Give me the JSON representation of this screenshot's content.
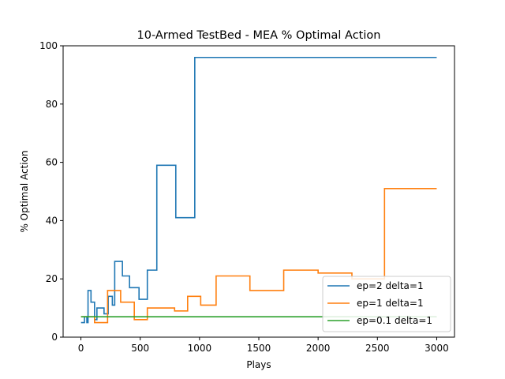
{
  "chart_data": {
    "type": "line",
    "title": "10-Armed TestBed - MEA % Optimal Action",
    "xlabel": "Plays",
    "ylabel": "% Optimal Action",
    "xlim": [
      -150,
      3150
    ],
    "ylim": [
      0,
      100
    ],
    "x_ticks": [
      0,
      500,
      1000,
      1500,
      2000,
      2500,
      3000
    ],
    "y_ticks": [
      0,
      20,
      40,
      60,
      80,
      100
    ],
    "grid": false,
    "legend_position": "lower-right",
    "line_shape": "step",
    "series": [
      {
        "name": "ep=2 delta=1",
        "color": "#1f77b4",
        "points": [
          [
            1,
            5
          ],
          [
            30,
            5
          ],
          [
            30,
            7
          ],
          [
            50,
            7
          ],
          [
            50,
            5
          ],
          [
            60,
            5
          ],
          [
            60,
            16
          ],
          [
            85,
            16
          ],
          [
            85,
            12
          ],
          [
            115,
            12
          ],
          [
            115,
            6
          ],
          [
            135,
            6
          ],
          [
            135,
            10
          ],
          [
            195,
            10
          ],
          [
            195,
            8
          ],
          [
            230,
            8
          ],
          [
            230,
            14
          ],
          [
            265,
            14
          ],
          [
            265,
            11
          ],
          [
            285,
            11
          ],
          [
            285,
            26
          ],
          [
            350,
            26
          ],
          [
            350,
            21
          ],
          [
            410,
            21
          ],
          [
            410,
            17
          ],
          [
            490,
            17
          ],
          [
            490,
            13
          ],
          [
            560,
            13
          ],
          [
            560,
            23
          ],
          [
            640,
            23
          ],
          [
            640,
            59
          ],
          [
            800,
            59
          ],
          [
            800,
            41
          ],
          [
            960,
            41
          ],
          [
            960,
            96
          ],
          [
            3000,
            96
          ]
        ]
      },
      {
        "name": "ep=1 delta=1",
        "color": "#ff7f0e",
        "points": [
          [
            1,
            7
          ],
          [
            115,
            7
          ],
          [
            115,
            5
          ],
          [
            225,
            5
          ],
          [
            225,
            16
          ],
          [
            335,
            16
          ],
          [
            335,
            12
          ],
          [
            450,
            12
          ],
          [
            450,
            6
          ],
          [
            560,
            6
          ],
          [
            560,
            10
          ],
          [
            790,
            10
          ],
          [
            790,
            9
          ],
          [
            900,
            9
          ],
          [
            900,
            14
          ],
          [
            1010,
            14
          ],
          [
            1010,
            11
          ],
          [
            1140,
            11
          ],
          [
            1140,
            21
          ],
          [
            1425,
            21
          ],
          [
            1425,
            16
          ],
          [
            1710,
            16
          ],
          [
            1710,
            23
          ],
          [
            2000,
            23
          ],
          [
            2000,
            22
          ],
          [
            2285,
            22
          ],
          [
            2285,
            20
          ],
          [
            2560,
            20
          ],
          [
            2560,
            51
          ],
          [
            3000,
            51
          ]
        ]
      },
      {
        "name": "ep=0.1 delta=1",
        "color": "#2ca02c",
        "points": [
          [
            1,
            7
          ],
          [
            3000,
            7
          ]
        ]
      }
    ]
  }
}
